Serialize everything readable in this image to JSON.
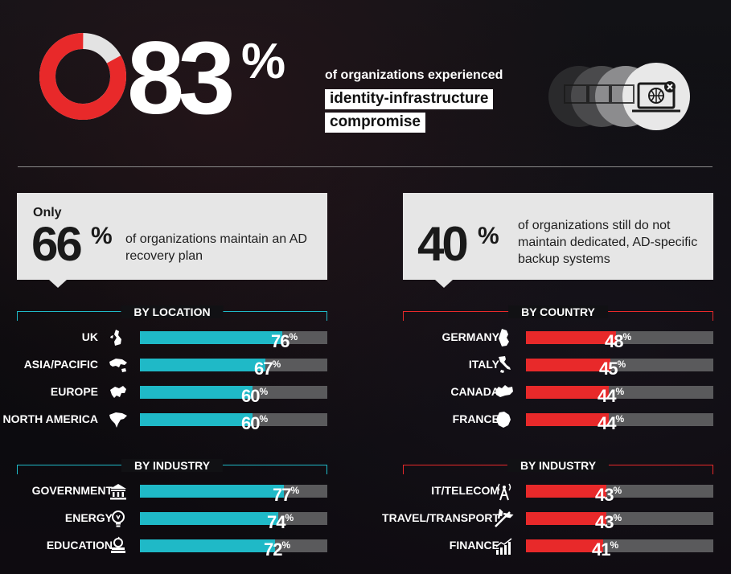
{
  "hero": {
    "value": "83",
    "percent_sign": "%",
    "ring_fraction": 0.83,
    "line1": "of organizations experienced",
    "line2": "identity-infrastructure",
    "line3": "compromise",
    "icon": "laptop-globe-x-icon"
  },
  "stat_left": {
    "prefix": "Only",
    "value": "66",
    "percent_sign": "%",
    "desc": "of organizations maintain an AD recovery plan"
  },
  "stat_right": {
    "value": "40",
    "percent_sign": "%",
    "desc": "of organizations still do not maintain dedicated, AD-specific backup systems"
  },
  "colors": {
    "teal": "#1fb9c7",
    "red": "#e8292a",
    "track": "#5a5a5c",
    "box": "#e6e6e6"
  },
  "chart_data": [
    {
      "type": "bar",
      "title": "BY LOCATION",
      "categories": [
        "UK",
        "ASIA/PACIFIC",
        "EUROPE",
        "NORTH AMERICA"
      ],
      "values": [
        76,
        67,
        60,
        60
      ],
      "icons": [
        "uk-map-icon",
        "asia-pacific-map-icon",
        "europe-map-icon",
        "north-america-map-icon"
      ],
      "color": "#1fb9c7",
      "ylim": [
        0,
        100
      ]
    },
    {
      "type": "bar",
      "title": "BY INDUSTRY",
      "categories": [
        "GOVERNMENT",
        "ENERGY",
        "EDUCATION"
      ],
      "values": [
        77,
        74,
        72
      ],
      "icons": [
        "government-building-icon",
        "lightbulb-icon",
        "apple-books-icon"
      ],
      "color": "#1fb9c7",
      "ylim": [
        0,
        100
      ]
    },
    {
      "type": "bar",
      "title": "BY COUNTRY",
      "categories": [
        "GERMANY",
        "ITALY",
        "CANADA",
        "FRANCE"
      ],
      "values": [
        48,
        45,
        44,
        44
      ],
      "icons": [
        "germany-map-icon",
        "italy-map-icon",
        "canada-map-icon",
        "france-map-icon"
      ],
      "color": "#e8292a",
      "ylim": [
        0,
        100
      ]
    },
    {
      "type": "bar",
      "title": "BY INDUSTRY",
      "categories": [
        "IT/TELECOM",
        "TRAVEL/TRANSPORT",
        "FINANCE"
      ],
      "values": [
        43,
        43,
        41
      ],
      "icons": [
        "antenna-tower-icon",
        "airplane-icon",
        "growth-chart-icon"
      ],
      "color": "#e8292a",
      "ylim": [
        0,
        100
      ]
    }
  ]
}
